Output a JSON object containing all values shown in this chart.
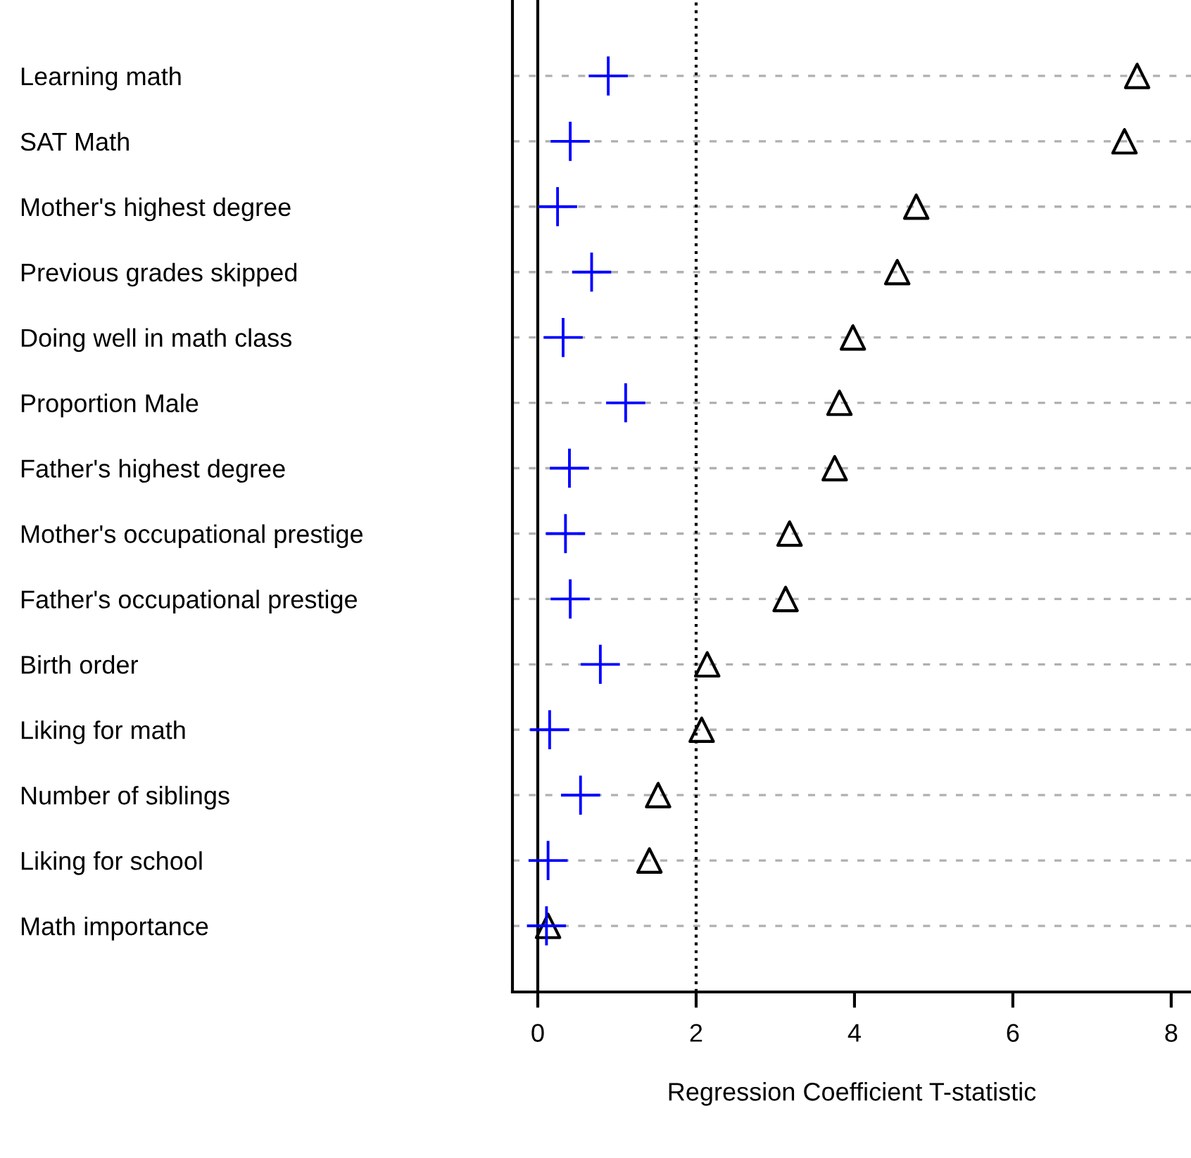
{
  "chart_data": {
    "type": "scatter",
    "orientation": "horizontal",
    "xlabel": "Regression Coefficient T-statistic",
    "categories": [
      "Learning math",
      "SAT Math",
      "Mother's highest degree",
      "Previous grades skipped",
      "Doing well in math class",
      "Proportion Male",
      "Father's highest degree",
      "Mother's occupational prestige",
      "Father's occupational prestige",
      "Birth order",
      "Liking for math",
      "Number of siblings",
      "Liking for school",
      "Math importance"
    ],
    "series": [
      {
        "color": "#000000",
        "marker": "triangle",
        "values": [
          7.57,
          7.41,
          4.78,
          4.54,
          3.98,
          3.81,
          3.75,
          3.18,
          3.13,
          2.14,
          2.07,
          1.52,
          1.41,
          0.13
        ]
      },
      {
        "color": "#0000ff",
        "marker": "cross",
        "values": [
          0.89,
          0.41,
          0.25,
          0.68,
          0.32,
          1.11,
          0.4,
          0.35,
          0.41,
          0.79,
          0.15,
          0.54,
          0.13,
          0.11
        ]
      }
    ],
    "xlim": [
      -0.32,
      8.25
    ],
    "xticks": [
      0,
      2,
      4,
      6,
      8
    ],
    "grid": "y",
    "ref_lines": [
      {
        "axis": "x",
        "value": 0,
        "color": "#000000",
        "line_style": "solid"
      },
      {
        "axis": "x",
        "value": 2,
        "color": "#000000",
        "line_style": "dotted"
      }
    ]
  }
}
